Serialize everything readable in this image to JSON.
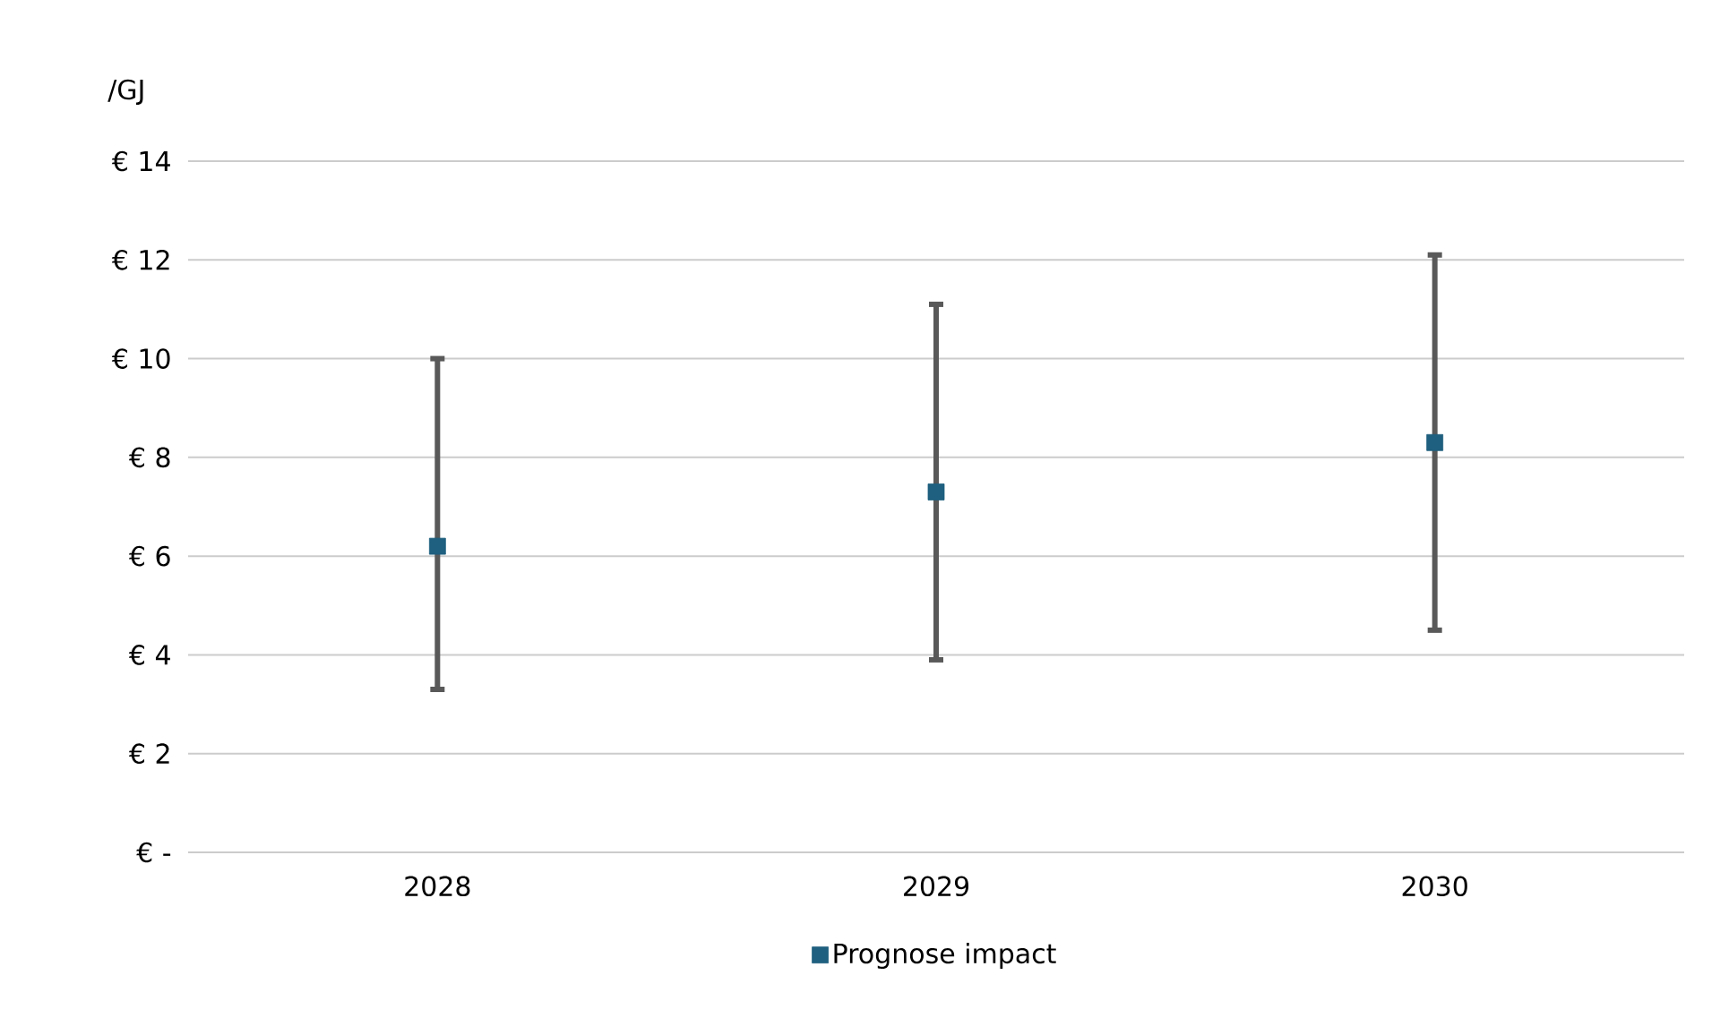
{
  "chart_data": {
    "type": "scatter",
    "ylabel": "/GJ",
    "categories": [
      "2028",
      "2029",
      "2030"
    ],
    "series": [
      {
        "name": "Prognose impact",
        "color": "#1f5f7f",
        "values": [
          6.2,
          7.3,
          8.3
        ],
        "errors": [
          [
            3.3,
            10.0
          ],
          [
            3.9,
            11.1
          ],
          [
            4.5,
            12.1
          ]
        ]
      }
    ],
    "ylim": [
      0,
      14
    ],
    "yticks": [
      {
        "value": 0,
        "label": "€ -"
      },
      {
        "value": 2,
        "label": "€ 2"
      },
      {
        "value": 4,
        "label": "€ 4"
      },
      {
        "value": 6,
        "label": "€ 6"
      },
      {
        "value": 8,
        "label": "€ 8"
      },
      {
        "value": 10,
        "label": "€ 10"
      },
      {
        "value": 12,
        "label": "€ 12"
      },
      {
        "value": 14,
        "label": "€ 14"
      }
    ],
    "grid": "y",
    "legend": "bottom",
    "marker": "square"
  }
}
